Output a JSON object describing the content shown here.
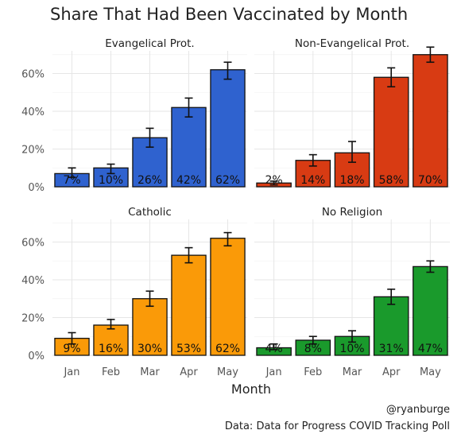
{
  "chart_data": {
    "type": "bar",
    "title": "Share That Had Been Vaccinated by Month",
    "xlabel": "Month",
    "ylabel": "",
    "categories": [
      "Jan",
      "Feb",
      "Mar",
      "Apr",
      "May"
    ],
    "ylim": [
      0,
      0.72
    ],
    "yticks": [
      {
        "value": 0,
        "label": "0%"
      },
      {
        "value": 0.2,
        "label": "20%"
      },
      {
        "value": 0.4,
        "label": "40%"
      },
      {
        "value": 0.6,
        "label": "60%"
      }
    ],
    "grid": true,
    "panels": [
      {
        "title": "Evangelical Prot.",
        "color": "#2f62cf",
        "values": [
          0.07,
          0.1,
          0.26,
          0.42,
          0.62
        ],
        "errors": [
          [
            0.05,
            0.1
          ],
          [
            0.07,
            0.12
          ],
          [
            0.21,
            0.31
          ],
          [
            0.37,
            0.47
          ],
          [
            0.57,
            0.66
          ]
        ],
        "labels": [
          "7%",
          "10%",
          "26%",
          "42%",
          "62%"
        ]
      },
      {
        "title": "Non-Evangelical Prot.",
        "color": "#d83b13",
        "values": [
          0.02,
          0.14,
          0.18,
          0.58,
          0.7
        ],
        "errors": [
          [
            0.01,
            0.03
          ],
          [
            0.11,
            0.17
          ],
          [
            0.13,
            0.24
          ],
          [
            0.53,
            0.63
          ],
          [
            0.66,
            0.74
          ]
        ],
        "labels": [
          "2%",
          "14%",
          "18%",
          "58%",
          "70%"
        ]
      },
      {
        "title": "Catholic",
        "color": "#fa9a08",
        "values": [
          0.09,
          0.16,
          0.3,
          0.53,
          0.62
        ],
        "errors": [
          [
            0.06,
            0.12
          ],
          [
            0.14,
            0.19
          ],
          [
            0.26,
            0.34
          ],
          [
            0.49,
            0.57
          ],
          [
            0.58,
            0.65
          ]
        ],
        "labels": [
          "9%",
          "16%",
          "30%",
          "53%",
          "62%"
        ]
      },
      {
        "title": "No Religion",
        "color": "#1a9a2c",
        "values": [
          0.04,
          0.08,
          0.1,
          0.31,
          0.47
        ],
        "errors": [
          [
            0.03,
            0.06
          ],
          [
            0.06,
            0.1
          ],
          [
            0.07,
            0.13
          ],
          [
            0.27,
            0.35
          ],
          [
            0.44,
            0.5
          ]
        ],
        "labels": [
          "4%",
          "8%",
          "10%",
          "31%",
          "47%"
        ]
      }
    ],
    "annotations": [
      "@ryanburge",
      "Data: Data for Progress COVID Tracking Poll"
    ]
  }
}
